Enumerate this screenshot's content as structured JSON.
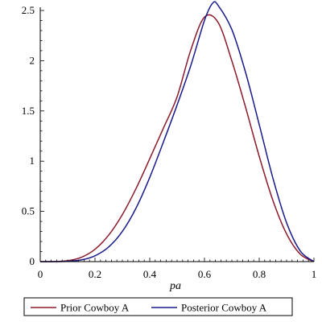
{
  "chart_data": {
    "type": "line",
    "xlabel": "pa",
    "ylabel": "",
    "xlim": [
      0,
      1
    ],
    "ylim": [
      0,
      2.5
    ],
    "x_ticks": [
      "0",
      "0.2",
      "0.4",
      "0.6",
      "0.8",
      "1"
    ],
    "y_ticks": [
      "0",
      "0.5",
      "1",
      "1.5",
      "2",
      "2.5"
    ],
    "grid": false,
    "legend_position": "bottom",
    "series": [
      {
        "name": "Prior Cowboy A",
        "color": "#8B1A2B",
        "x": [
          0,
          0.05,
          0.1,
          0.15,
          0.2,
          0.25,
          0.3,
          0.35,
          0.4,
          0.45,
          0.5,
          0.55,
          0.6,
          0.65,
          0.7,
          0.75,
          0.8,
          0.85,
          0.9,
          0.95,
          1
        ],
        "y": [
          0,
          0.001,
          0.009,
          0.043,
          0.123,
          0.264,
          0.468,
          0.728,
          1.024,
          1.329,
          1.641,
          2.106,
          2.434,
          2.38,
          1.998,
          1.538,
          1.048,
          0.609,
          0.276,
          0.074,
          0
        ]
      },
      {
        "name": "Posterior Cowboy A",
        "color": "#1A1A8C",
        "x": [
          0,
          0.05,
          0.1,
          0.15,
          0.2,
          0.25,
          0.3,
          0.35,
          0.4,
          0.45,
          0.5,
          0.55,
          0.6,
          0.63,
          0.65,
          0.7,
          0.75,
          0.8,
          0.85,
          0.9,
          0.95,
          1
        ],
        "y": [
          0,
          0.0002,
          0.003,
          0.017,
          0.058,
          0.146,
          0.301,
          0.533,
          0.838,
          1.191,
          1.559,
          1.951,
          2.401,
          2.573,
          2.55,
          2.31,
          1.885,
          1.365,
          0.831,
          0.387,
          0.106,
          0
        ]
      }
    ]
  }
}
